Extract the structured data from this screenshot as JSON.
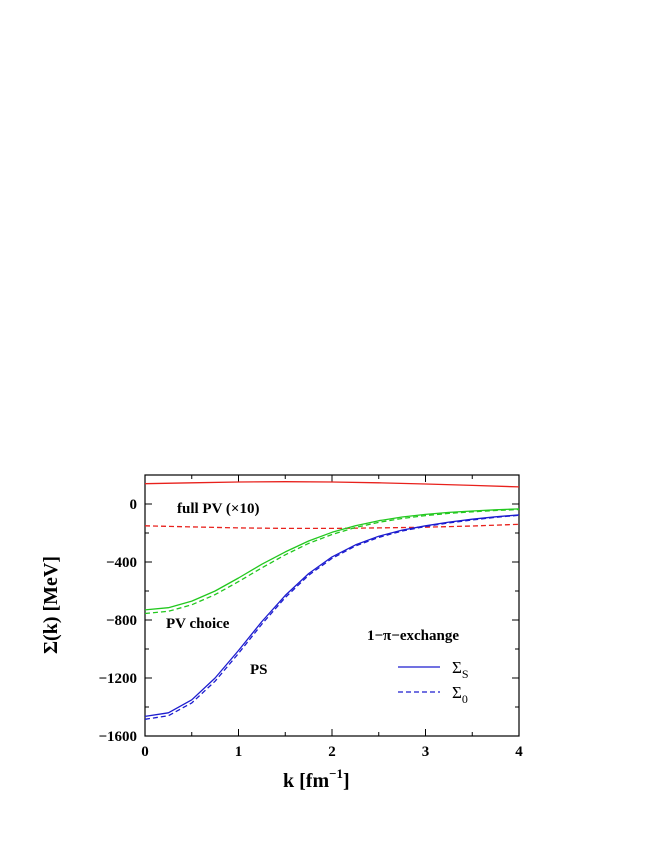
{
  "chart_data": {
    "type": "line",
    "xlabel": "k [fm⁻¹]",
    "xlabel_main": "k [fm",
    "xlabel_sup": "−1",
    "xlabel_close": "]",
    "ylabel": "Σ(k) [MeV]",
    "xlim": [
      0,
      4
    ],
    "ylim": [
      -1600,
      200
    ],
    "xticks": [
      0,
      1,
      2,
      3,
      4
    ],
    "yticks": [
      -1600,
      -1200,
      -800,
      -400,
      0
    ],
    "grid": false,
    "annotations": {
      "full_pv": "full PV (×10)",
      "pv_choice": "PV choice",
      "ps": "PS"
    },
    "legend": {
      "title": "1−π−exchange",
      "placement": "bottom-right",
      "entries": [
        {
          "label": "Σ",
          "sub": "S",
          "style": "solid"
        },
        {
          "label": "Σ",
          "sub": "0",
          "style": "dashed"
        }
      ]
    },
    "series": [
      {
        "group": "full PV (×10)",
        "component": "ΣS",
        "color": "#e8211c",
        "style": "solid",
        "x": [
          0,
          0.5,
          1,
          1.5,
          2,
          2.5,
          3,
          3.5,
          4
        ],
        "y": [
          140,
          146,
          152,
          154,
          152,
          146,
          138,
          128,
          118
        ]
      },
      {
        "group": "full PV (×10)",
        "component": "Σ0",
        "color": "#e8211c",
        "style": "dashed",
        "x": [
          0,
          0.5,
          1,
          1.5,
          2,
          2.5,
          3,
          3.5,
          4
        ],
        "y": [
          -150,
          -158,
          -165,
          -168,
          -168,
          -165,
          -160,
          -152,
          -140
        ]
      },
      {
        "group": "PV choice",
        "component": "ΣS",
        "color": "#22c81e",
        "style": "solid",
        "x": [
          0,
          0.25,
          0.5,
          0.75,
          1,
          1.25,
          1.5,
          1.75,
          2,
          2.25,
          2.5,
          2.75,
          3,
          3.25,
          3.5,
          3.75,
          4
        ],
        "y": [
          -730,
          -715,
          -670,
          -600,
          -510,
          -415,
          -330,
          -255,
          -195,
          -150,
          -115,
          -90,
          -72,
          -58,
          -48,
          -40,
          -34
        ]
      },
      {
        "group": "PV choice",
        "component": "Σ0",
        "color": "#22c81e",
        "style": "dashed",
        "x": [
          0,
          0.25,
          0.5,
          0.75,
          1,
          1.25,
          1.5,
          1.75,
          2,
          2.25,
          2.5,
          2.75,
          3,
          3.25,
          3.5,
          3.75,
          4
        ],
        "y": [
          -755,
          -740,
          -695,
          -625,
          -535,
          -440,
          -350,
          -272,
          -210,
          -162,
          -126,
          -100,
          -80,
          -65,
          -54,
          -45,
          -38
        ]
      },
      {
        "group": "PS",
        "component": "ΣS",
        "color": "#1c1ccf",
        "style": "solid",
        "x": [
          0,
          0.25,
          0.5,
          0.75,
          1,
          1.25,
          1.5,
          1.75,
          2,
          2.25,
          2.5,
          2.75,
          3,
          3.25,
          3.5,
          3.75,
          4
        ],
        "y": [
          -1465,
          -1440,
          -1350,
          -1200,
          -1010,
          -810,
          -630,
          -480,
          -365,
          -282,
          -222,
          -180,
          -150,
          -125,
          -105,
          -88,
          -75
        ]
      },
      {
        "group": "PS",
        "component": "Σ0",
        "color": "#1c1ccf",
        "style": "dashed",
        "x": [
          0,
          0.25,
          0.5,
          0.75,
          1,
          1.25,
          1.5,
          1.75,
          2,
          2.25,
          2.5,
          2.75,
          3,
          3.25,
          3.5,
          3.75,
          4
        ],
        "y": [
          -1485,
          -1460,
          -1372,
          -1222,
          -1030,
          -828,
          -645,
          -492,
          -375,
          -290,
          -230,
          -186,
          -155,
          -130,
          -110,
          -92,
          -78
        ]
      }
    ]
  }
}
